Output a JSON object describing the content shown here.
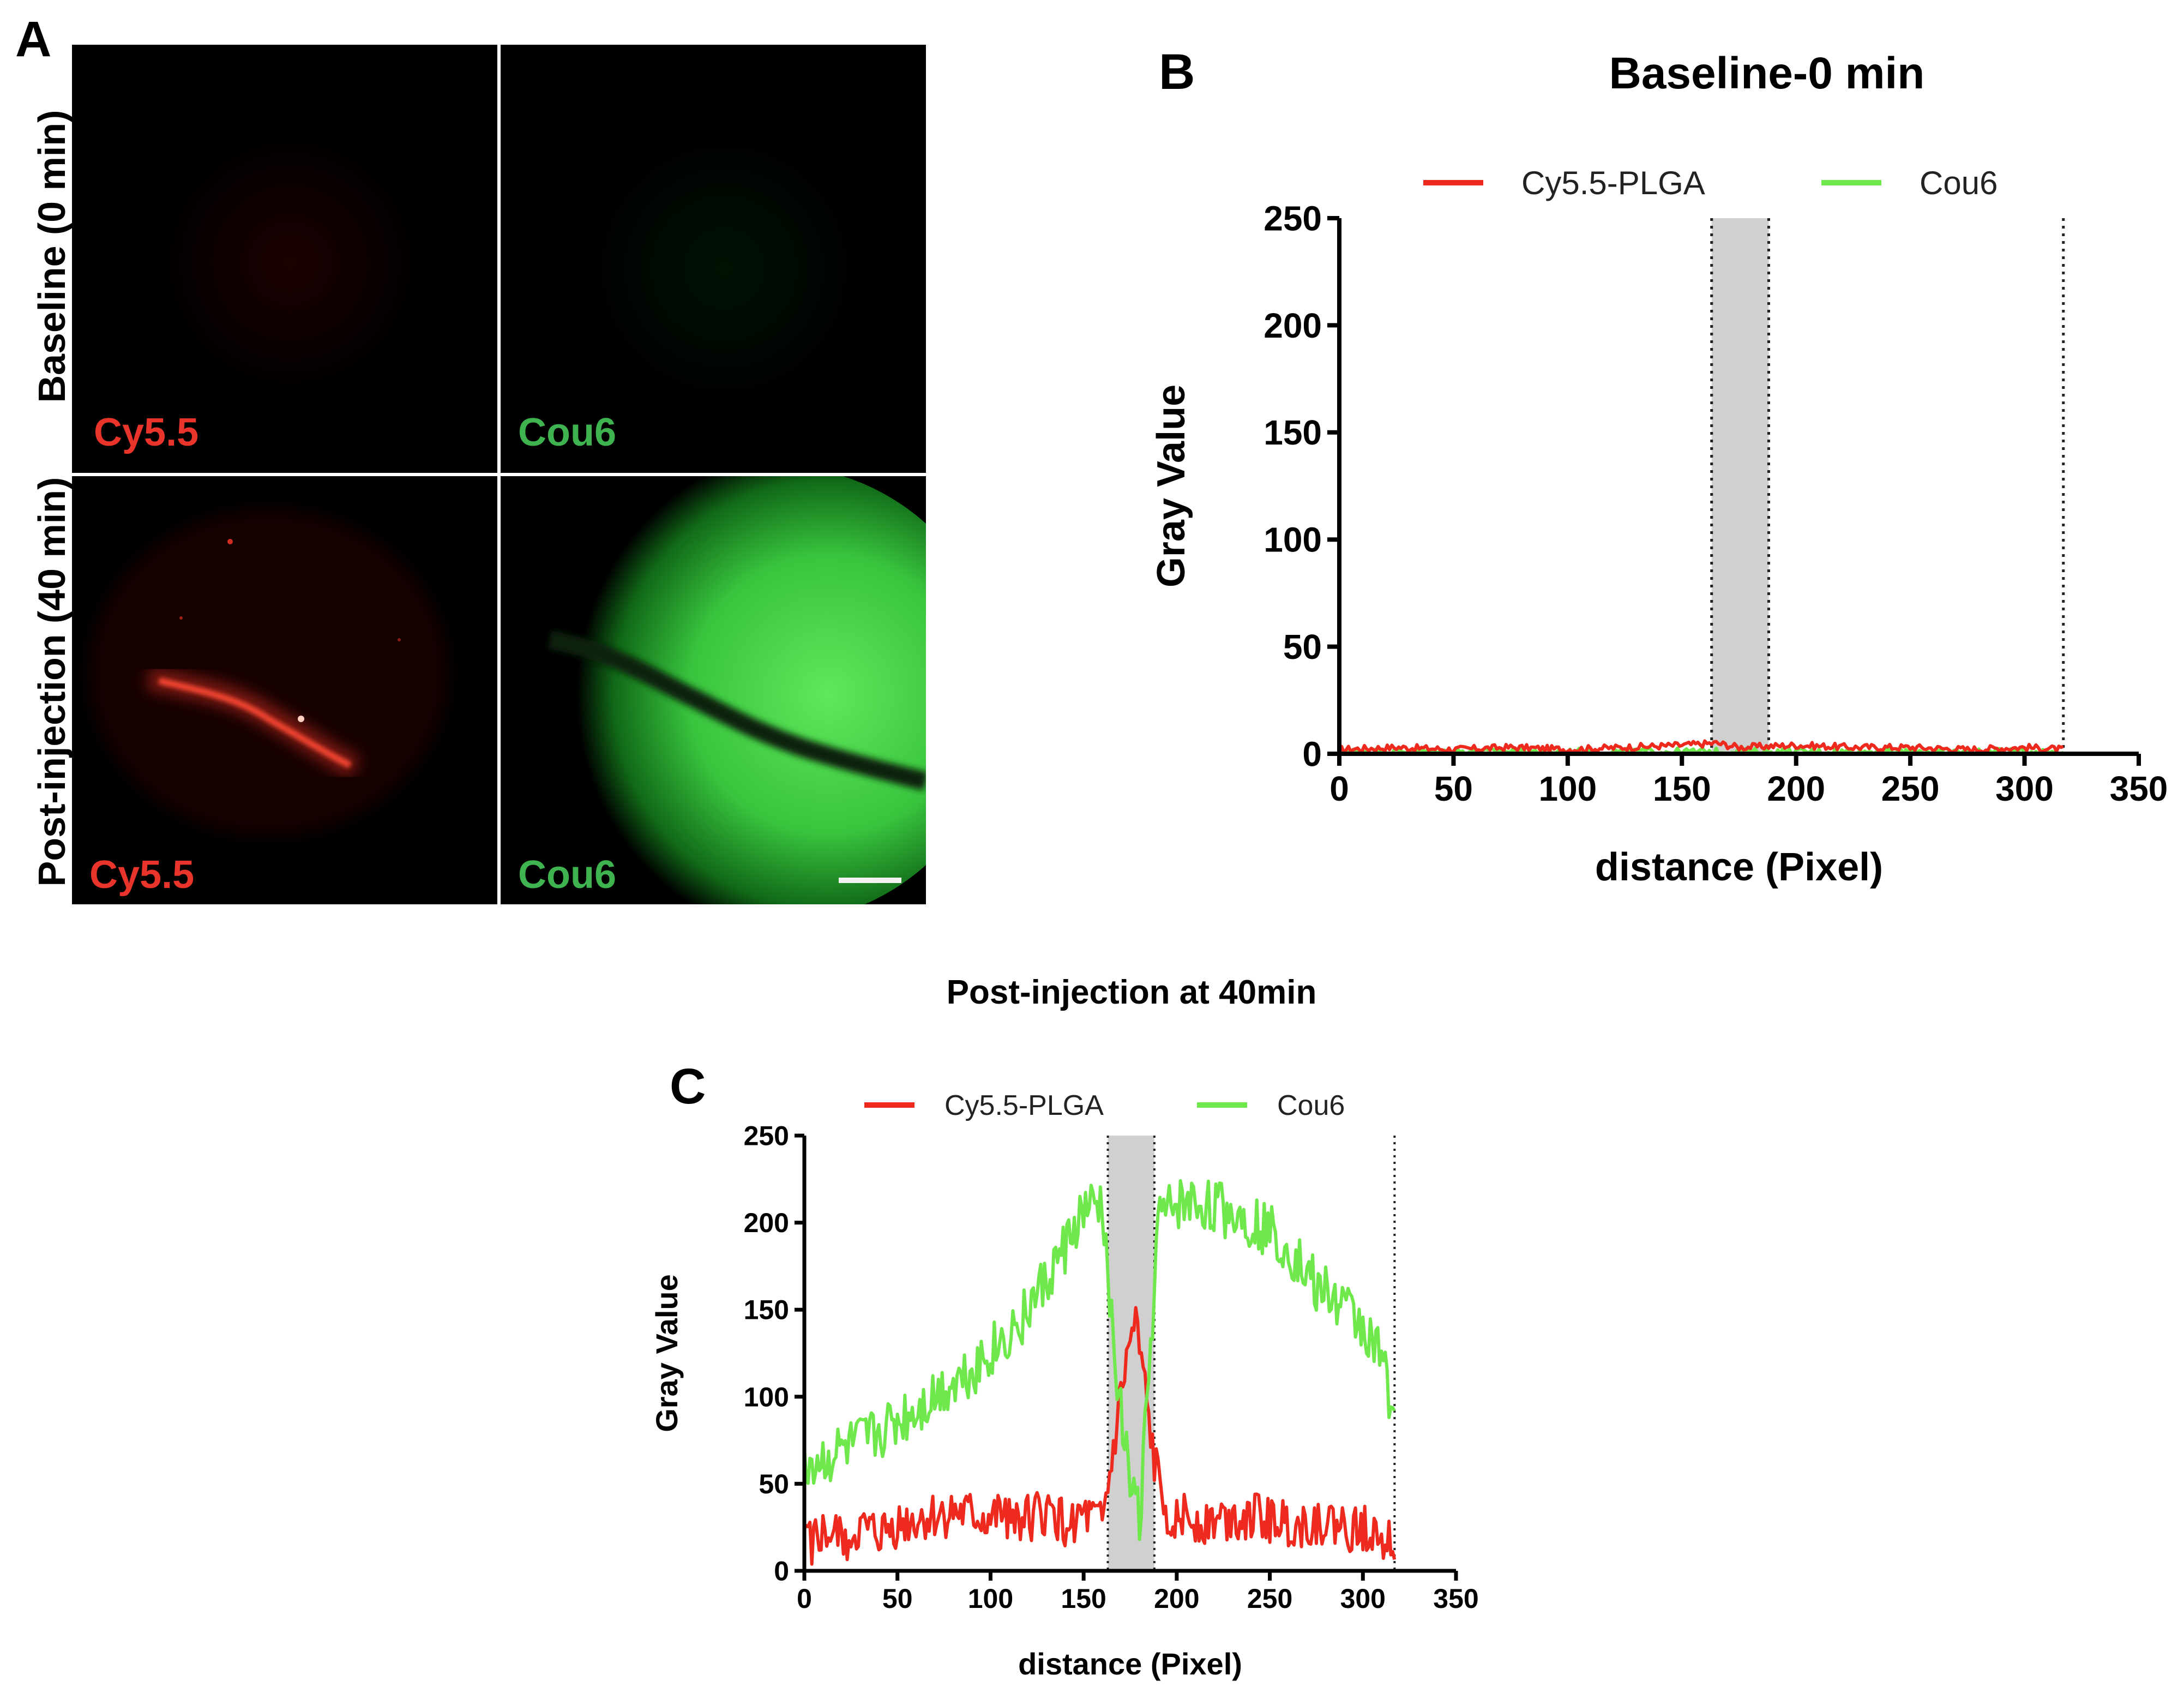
{
  "panel_a": {
    "letter": "A",
    "row_labels": [
      "Baseline (0 min)",
      "Post-injection (40 min)"
    ],
    "channel_labels": {
      "top_left": "Cy5.5",
      "top_right": "Cou6",
      "bottom_left": "Cy5.5",
      "bottom_right": "Cou6"
    },
    "colors": {
      "cy55": "#e8342a",
      "cou6": "#3fb34f",
      "panel_bg": "#000000",
      "grid_line": "#b8b8b8"
    }
  },
  "chart_data": [
    {
      "panel": "B",
      "type": "line",
      "title": "Baseline-0 min",
      "xlabel": "distance (Pixel)",
      "ylabel": "Gray Value",
      "xlim": [
        0,
        350
      ],
      "ylim": [
        0,
        250
      ],
      "xticks": [
        "0",
        "50",
        "100",
        "150",
        "200",
        "250",
        "300",
        "350"
      ],
      "yticks": [
        "0",
        "50",
        "100",
        "150",
        "200",
        "250"
      ],
      "legend_position": "top",
      "shaded_region": [
        163,
        188
      ],
      "dotted_lines": [
        163,
        188,
        317
      ],
      "series": [
        {
          "name": "Cy5.5-PLGA",
          "color": "#ee2a1f",
          "x": [
            0,
            25,
            50,
            75,
            100,
            125,
            150,
            165,
            175,
            200,
            225,
            250,
            275,
            300,
            317
          ],
          "values": [
            2,
            3,
            2,
            3,
            2,
            3,
            4,
            5,
            3,
            4,
            3,
            3,
            2,
            3,
            2
          ]
        },
        {
          "name": "Cou6",
          "color": "#6ee84a",
          "x": [
            0,
            50,
            100,
            150,
            200,
            250,
            300,
            317
          ],
          "values": [
            1,
            1,
            1,
            1,
            1,
            1,
            1,
            1
          ]
        }
      ]
    },
    {
      "panel": "C",
      "type": "line",
      "title": "Post-injection at 40min",
      "xlabel": "distance (Pixel)",
      "ylabel": "Gray Value",
      "xlim": [
        0,
        350
      ],
      "ylim": [
        0,
        250
      ],
      "xticks": [
        "0",
        "50",
        "100",
        "150",
        "200",
        "250",
        "300",
        "350"
      ],
      "yticks": [
        "0",
        "50",
        "100",
        "150",
        "200",
        "250"
      ],
      "legend_position": "top",
      "shaded_region": [
        163,
        188
      ],
      "dotted_lines": [
        163,
        188,
        317
      ],
      "series": [
        {
          "name": "Cy5.5-PLGA",
          "color": "#ee2a1f",
          "x": [
            0,
            10,
            20,
            30,
            40,
            50,
            60,
            70,
            80,
            90,
            100,
            110,
            120,
            130,
            140,
            150,
            160,
            165,
            170,
            175,
            178,
            182,
            188,
            195,
            205,
            215,
            225,
            235,
            245,
            255,
            265,
            275,
            285,
            295,
            305,
            312,
            317
          ],
          "values": [
            15,
            20,
            18,
            22,
            20,
            25,
            28,
            30,
            32,
            30,
            28,
            33,
            30,
            32,
            28,
            30,
            25,
            60,
            100,
            130,
            140,
            110,
            60,
            35,
            30,
            28,
            30,
            32,
            30,
            28,
            25,
            28,
            26,
            22,
            25,
            20,
            18
          ]
        },
        {
          "name": "Cou6",
          "color": "#6ee84a",
          "x": [
            0,
            10,
            20,
            30,
            40,
            50,
            60,
            70,
            80,
            90,
            100,
            110,
            120,
            130,
            140,
            150,
            160,
            165,
            170,
            175,
            180,
            185,
            190,
            200,
            210,
            220,
            230,
            240,
            250,
            260,
            270,
            280,
            290,
            300,
            310,
            317
          ],
          "values": [
            60,
            62,
            68,
            72,
            78,
            85,
            92,
            100,
            108,
            115,
            125,
            135,
            150,
            165,
            185,
            205,
            208,
            150,
            90,
            50,
            30,
            110,
            200,
            210,
            210,
            208,
            205,
            200,
            195,
            185,
            170,
            160,
            150,
            140,
            120,
            90
          ]
        }
      ]
    }
  ]
}
